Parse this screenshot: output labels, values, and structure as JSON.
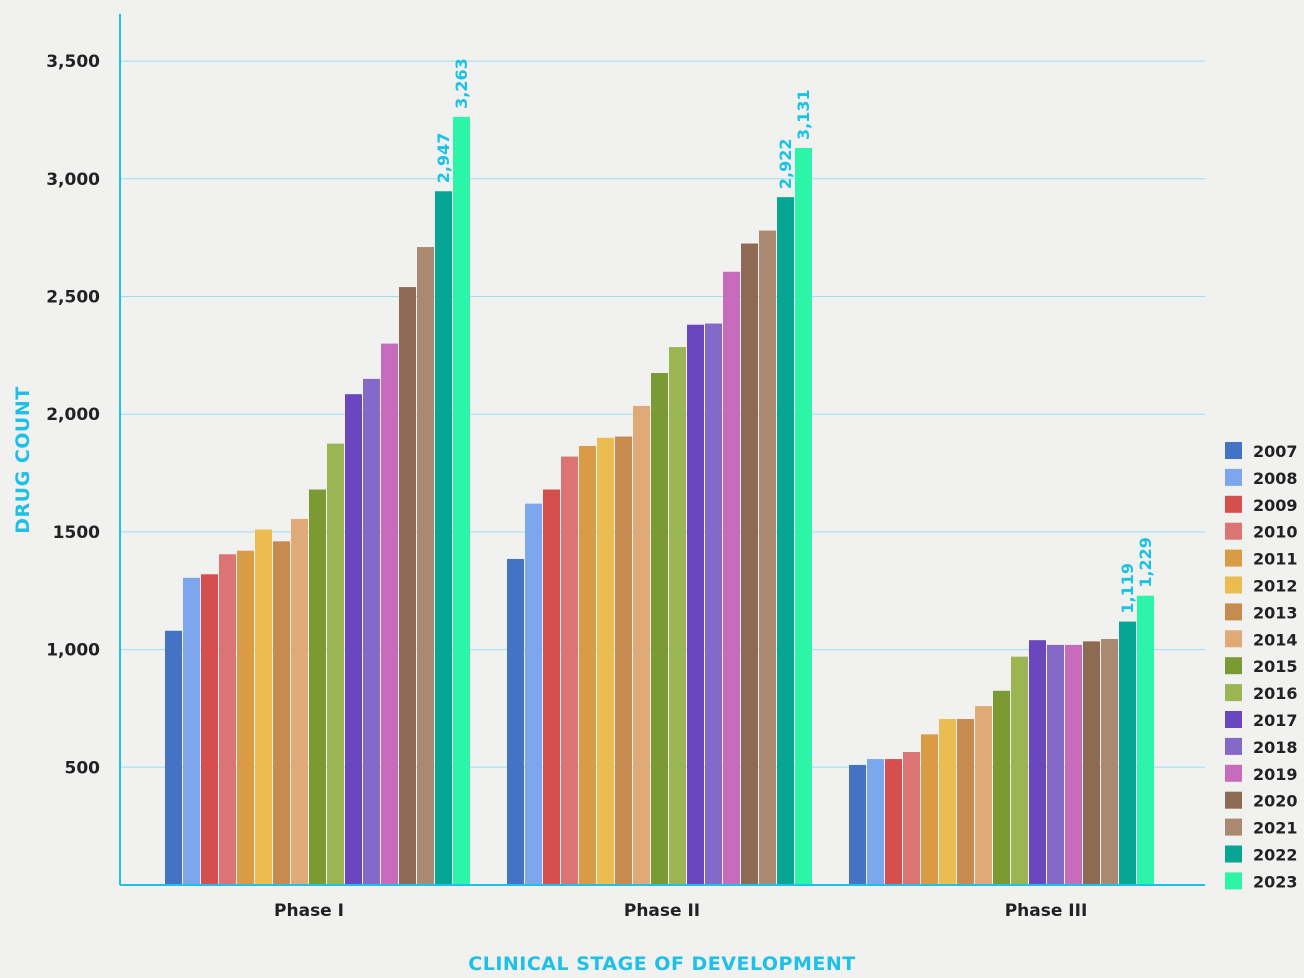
{
  "chart_data": {
    "type": "bar",
    "xlabel": "CLINICAL STAGE OF DEVELOPMENT",
    "ylabel": "DRUG COUNT",
    "ylim": [
      0,
      3700
    ],
    "yticks": [
      {
        "value": 500,
        "label": "500"
      },
      {
        "value": 1000,
        "label": "1,000"
      },
      {
        "value": 1500,
        "label": "1500"
      },
      {
        "value": 2000,
        "label": "2,000"
      },
      {
        "value": 2500,
        "label": "2,500"
      },
      {
        "value": 3000,
        "label": "3,000"
      },
      {
        "value": 3500,
        "label": "3,500"
      }
    ],
    "grid": true,
    "legend_position": "right",
    "categories": [
      "Phase I",
      "Phase II",
      "Phase III"
    ],
    "series": [
      {
        "name": "2007",
        "color": "#4472c4",
        "values": [
          1080,
          1385,
          510
        ]
      },
      {
        "name": "2008",
        "color": "#7ca7ee",
        "values": [
          1305,
          1620,
          535
        ]
      },
      {
        "name": "2009",
        "color": "#d64f4f",
        "values": [
          1320,
          1680,
          535
        ]
      },
      {
        "name": "2010",
        "color": "#dc7474",
        "values": [
          1405,
          1820,
          565
        ]
      },
      {
        "name": "2011",
        "color": "#d99b45",
        "values": [
          1420,
          1865,
          640
        ]
      },
      {
        "name": "2012",
        "color": "#ebbc50",
        "values": [
          1510,
          1900,
          705
        ]
      },
      {
        "name": "2013",
        "color": "#c78a4f",
        "values": [
          1460,
          1905,
          705
        ]
      },
      {
        "name": "2014",
        "color": "#e0aa78",
        "values": [
          1555,
          2035,
          760
        ]
      },
      {
        "name": "2015",
        "color": "#7b9a33",
        "values": [
          1680,
          2175,
          825
        ]
      },
      {
        "name": "2016",
        "color": "#9ab552",
        "values": [
          1875,
          2285,
          970
        ]
      },
      {
        "name": "2017",
        "color": "#6a47bf",
        "values": [
          2085,
          2380,
          1040
        ]
      },
      {
        "name": "2018",
        "color": "#8469c9",
        "values": [
          2150,
          2385,
          1020
        ]
      },
      {
        "name": "2019",
        "color": "#c76cbd",
        "values": [
          2300,
          2605,
          1020
        ]
      },
      {
        "name": "2020",
        "color": "#8e6a55",
        "values": [
          2540,
          2725,
          1035
        ]
      },
      {
        "name": "2021",
        "color": "#a98a70",
        "values": [
          2710,
          2780,
          1045
        ]
      },
      {
        "name": "2022",
        "color": "#07a594",
        "values": [
          2947,
          2922,
          1119
        ]
      },
      {
        "name": "2023",
        "color": "#2cf5aa",
        "values": [
          3263,
          3131,
          1229
        ]
      }
    ],
    "annotations": [
      {
        "category": 0,
        "series": 15,
        "label": "2,947"
      },
      {
        "category": 0,
        "series": 16,
        "label": "3,263"
      },
      {
        "category": 1,
        "series": 15,
        "label": "2,922"
      },
      {
        "category": 1,
        "series": 16,
        "label": "3,131"
      },
      {
        "category": 2,
        "series": 15,
        "label": "1,119"
      },
      {
        "category": 2,
        "series": 16,
        "label": "1,229"
      }
    ]
  }
}
